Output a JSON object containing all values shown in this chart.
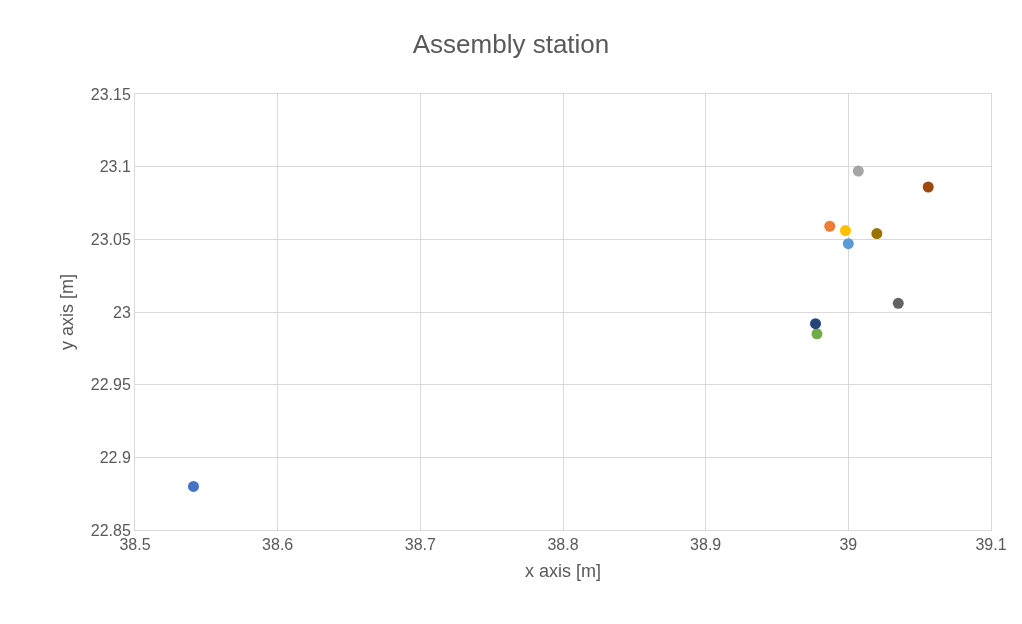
{
  "chart_data": {
    "type": "scatter",
    "title": "Assembly station",
    "xlabel": "x axis [m]",
    "ylabel": "y axis [m]",
    "x": [
      38.541,
      38.987,
      39.007,
      38.998,
      39.0,
      38.978,
      38.977,
      39.056,
      39.035,
      39.02
    ],
    "values": [
      22.88,
      23.059,
      23.097,
      23.056,
      23.047,
      22.985,
      22.992,
      23.086,
      23.006,
      23.054
    ],
    "colors": [
      "#4472c4",
      "#ed7d31",
      "#a5a5a5",
      "#ffc000",
      "#5b9bd5",
      "#70ad47",
      "#264478",
      "#9e480e",
      "#636363",
      "#997300"
    ],
    "xlim": [
      38.5,
      39.1
    ],
    "xticks": [
      38.5,
      38.6,
      38.7,
      38.8,
      38.9,
      {
        "value": 39,
        "label": "39"
      },
      39.1
    ],
    "ylim": [
      22.85,
      23.15
    ],
    "yticks": [
      22.85,
      22.9,
      22.95,
      {
        "value": 23,
        "label": "23"
      },
      23.05,
      23.1,
      23.15
    ],
    "grid": true,
    "marker": "circle"
  }
}
